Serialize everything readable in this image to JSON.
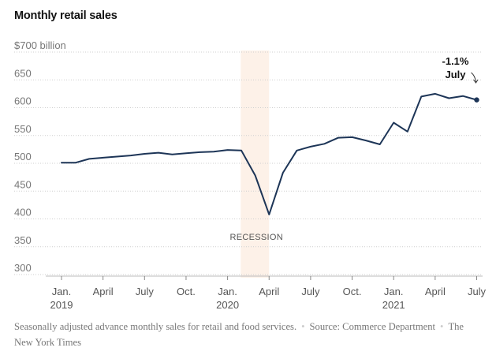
{
  "chart_data": {
    "type": "line",
    "title": "Monthly retail sales",
    "ylim": [
      300,
      700
    ],
    "y_ticks": [
      {
        "value": 700,
        "label": "$700 billion"
      },
      {
        "value": 650,
        "label": "650"
      },
      {
        "value": 600,
        "label": "600"
      },
      {
        "value": 550,
        "label": "550"
      },
      {
        "value": 500,
        "label": "500"
      },
      {
        "value": 450,
        "label": "450"
      },
      {
        "value": 400,
        "label": "400"
      },
      {
        "value": 350,
        "label": "350"
      },
      {
        "value": 300,
        "label": "300"
      }
    ],
    "x_ticks": [
      {
        "date": "2019-01",
        "line1": "Jan.",
        "line2": "2019"
      },
      {
        "date": "2019-04",
        "line1": "April",
        "line2": ""
      },
      {
        "date": "2019-07",
        "line1": "July",
        "line2": ""
      },
      {
        "date": "2019-10",
        "line1": "Oct.",
        "line2": ""
      },
      {
        "date": "2020-01",
        "line1": "Jan.",
        "line2": "2020"
      },
      {
        "date": "2020-04",
        "line1": "April",
        "line2": ""
      },
      {
        "date": "2020-07",
        "line1": "July",
        "line2": ""
      },
      {
        "date": "2020-10",
        "line1": "Oct.",
        "line2": ""
      },
      {
        "date": "2021-01",
        "line1": "Jan.",
        "line2": "2021"
      },
      {
        "date": "2021-04",
        "line1": "April",
        "line2": ""
      },
      {
        "date": "2021-07",
        "line1": "July",
        "line2": ""
      }
    ],
    "series": [
      {
        "color": "#1d3557",
        "points": [
          {
            "x": "2019-01",
            "y": 501
          },
          {
            "x": "2019-02",
            "y": 501
          },
          {
            "x": "2019-03",
            "y": 508
          },
          {
            "x": "2019-04",
            "y": 510
          },
          {
            "x": "2019-05",
            "y": 512
          },
          {
            "x": "2019-06",
            "y": 514
          },
          {
            "x": "2019-07",
            "y": 517
          },
          {
            "x": "2019-08",
            "y": 519
          },
          {
            "x": "2019-09",
            "y": 516
          },
          {
            "x": "2019-10",
            "y": 518
          },
          {
            "x": "2019-11",
            "y": 520
          },
          {
            "x": "2019-12",
            "y": 521
          },
          {
            "x": "2020-01",
            "y": 524
          },
          {
            "x": "2020-02",
            "y": 523
          },
          {
            "x": "2020-03",
            "y": 478
          },
          {
            "x": "2020-04",
            "y": 408
          },
          {
            "x": "2020-05",
            "y": 483
          },
          {
            "x": "2020-06",
            "y": 523
          },
          {
            "x": "2020-07",
            "y": 530
          },
          {
            "x": "2020-08",
            "y": 535
          },
          {
            "x": "2020-09",
            "y": 546
          },
          {
            "x": "2020-10",
            "y": 547
          },
          {
            "x": "2020-11",
            "y": 541
          },
          {
            "x": "2020-12",
            "y": 534
          },
          {
            "x": "2021-01",
            "y": 573
          },
          {
            "x": "2021-02",
            "y": 557
          },
          {
            "x": "2021-03",
            "y": 620
          },
          {
            "x": "2021-04",
            "y": 625
          },
          {
            "x": "2021-05",
            "y": 617
          },
          {
            "x": "2021-06",
            "y": 621
          },
          {
            "x": "2021-07",
            "y": 614
          }
        ]
      }
    ],
    "shaded_region": {
      "start": "2020-02",
      "end": "2020-04",
      "label": "RECESSION",
      "color": "#fdf1e8"
    },
    "annotation": {
      "x": "2021-07",
      "value_text": "-1.1%",
      "month_text": "July"
    },
    "grid": true,
    "grid_style": "dotted"
  },
  "footer": {
    "note": "Seasonally adjusted advance monthly sales for retail and food services.",
    "source": "Source: Commerce Department",
    "credit": "The New York Times"
  }
}
